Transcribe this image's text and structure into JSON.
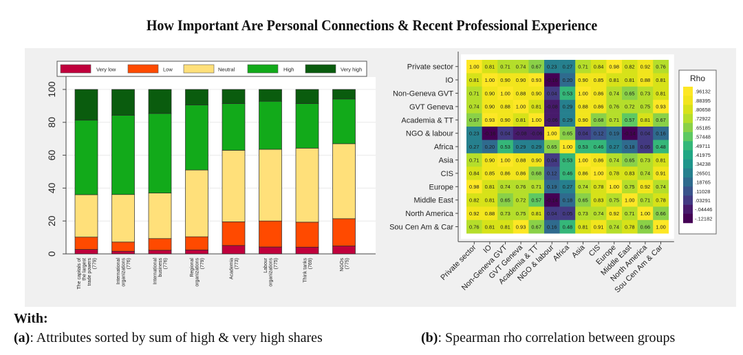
{
  "title": "How Important Are Personal Connections & Recent Professional Experience",
  "captions": {
    "with_label": "With:",
    "a_tag": "(a)",
    "a_text": ": Attributes sorted by sum of high & very high shares",
    "b_tag": "(b)",
    "b_text": ": Spearman rho correlation between groups"
  },
  "chart_data": [
    {
      "type": "bar",
      "stacked": true,
      "title": "",
      "xlabel": "",
      "ylabel": "",
      "ylim": [
        0,
        100
      ],
      "yticks": [
        0,
        20,
        40,
        60,
        80,
        100
      ],
      "grid": true,
      "legend_position": "top",
      "categories": [
        [
          "The capitals of",
          "the largest",
          "trade powers",
          "(779)"
        ],
        [
          "International",
          "organizations",
          "(776)"
        ],
        [
          "International",
          "business",
          "(776)"
        ],
        [
          "Regional",
          "organizations",
          "(779)"
        ],
        [
          "Academia",
          "(773)"
        ],
        [
          "Labour",
          "organizations",
          "(775)"
        ],
        [
          "Think tanks",
          "(769)"
        ],
        [
          "NGOs",
          "(775)"
        ]
      ],
      "series": [
        {
          "name": "Very low",
          "color": "#c0003c",
          "values": [
            2.7,
            1.6,
            2.2,
            2.4,
            5.1,
            4.2,
            4.1,
            4.8
          ]
        },
        {
          "name": "Low",
          "color": "#ff4a00",
          "values": [
            7.5,
            5.6,
            7.1,
            8.0,
            14.4,
            15.8,
            15.2,
            16.6
          ]
        },
        {
          "name": "Neutral",
          "color": "#ffe07a",
          "values": [
            25.8,
            28.9,
            27.7,
            40.6,
            43.5,
            43.6,
            45.0,
            45.6
          ]
        },
        {
          "name": "High",
          "color": "#12aa1a",
          "values": [
            45.3,
            48.2,
            48.4,
            39.6,
            28.4,
            29.2,
            27.1,
            27.2
          ]
        },
        {
          "name": "Very high",
          "color": "#0a5c0e",
          "values": [
            18.7,
            15.7,
            14.6,
            9.4,
            8.6,
            7.2,
            8.6,
            5.8
          ]
        }
      ]
    },
    {
      "type": "heatmap",
      "title": "",
      "colorbar_title": "Rho",
      "colorbar_ticks": [
        ".96132",
        ".88395",
        ".80658",
        ".72922",
        ".65185",
        ".57448",
        ".49711",
        ".41975",
        ".34238",
        ".26501",
        ".18765",
        ".11028",
        ".03291",
        "-.04446",
        "-.12182"
      ],
      "labels": [
        "Private sector",
        "IO",
        "Non-Geneva GVT",
        "GVT Geneva",
        "Academia & TT",
        "NGO & labour",
        "Africa",
        "Asia",
        "CIS",
        "Europe",
        "Middle East",
        "North America",
        "Sou Cen Am & Car"
      ],
      "values": [
        [
          1.0,
          0.81,
          0.71,
          0.74,
          0.67,
          0.23,
          0.27,
          0.71,
          0.84,
          0.98,
          0.82,
          0.92,
          0.76
        ],
        [
          0.81,
          1.0,
          0.9,
          0.9,
          0.93,
          -0.16,
          0.2,
          0.9,
          0.85,
          0.81,
          0.81,
          0.88,
          0.81
        ],
        [
          0.71,
          0.9,
          1.0,
          0.88,
          0.9,
          0.04,
          0.53,
          1.0,
          0.86,
          0.74,
          0.65,
          0.73,
          0.81
        ],
        [
          0.74,
          0.9,
          0.88,
          1.0,
          0.81,
          -0.08,
          0.29,
          0.88,
          0.86,
          0.76,
          0.72,
          0.75,
          0.93
        ],
        [
          0.67,
          0.93,
          0.9,
          0.81,
          1.0,
          -0.06,
          0.29,
          0.9,
          0.68,
          0.71,
          0.57,
          0.81,
          0.67
        ],
        [
          0.23,
          -0.16,
          0.04,
          -0.08,
          -0.06,
          1.0,
          0.65,
          0.04,
          0.12,
          0.19,
          -0.14,
          0.04,
          0.16
        ],
        [
          0.27,
          0.2,
          0.53,
          0.29,
          0.29,
          0.65,
          1.0,
          0.53,
          0.46,
          0.27,
          0.18,
          0.05,
          0.48
        ],
        [
          0.71,
          0.9,
          1.0,
          0.88,
          0.9,
          0.04,
          0.53,
          1.0,
          0.86,
          0.74,
          0.65,
          0.73,
          0.81
        ],
        [
          0.84,
          0.85,
          0.86,
          0.86,
          0.68,
          0.12,
          0.46,
          0.86,
          1.0,
          0.78,
          0.83,
          0.74,
          0.91
        ],
        [
          0.98,
          0.81,
          0.74,
          0.76,
          0.71,
          0.19,
          0.27,
          0.74,
          0.78,
          1.0,
          0.75,
          0.92,
          0.74
        ],
        [
          0.82,
          0.81,
          0.65,
          0.72,
          0.57,
          -0.14,
          0.18,
          0.65,
          0.83,
          0.75,
          1.0,
          0.71,
          0.78
        ],
        [
          0.92,
          0.88,
          0.73,
          0.75,
          0.81,
          0.04,
          0.05,
          0.73,
          0.74,
          0.92,
          0.71,
          1.0,
          0.66
        ],
        [
          0.76,
          0.81,
          0.81,
          0.93,
          0.67,
          0.16,
          0.48,
          0.81,
          0.91,
          0.74,
          0.78,
          0.66,
          1.0
        ]
      ],
      "vrange": [
        -0.16,
        1.0
      ]
    }
  ]
}
